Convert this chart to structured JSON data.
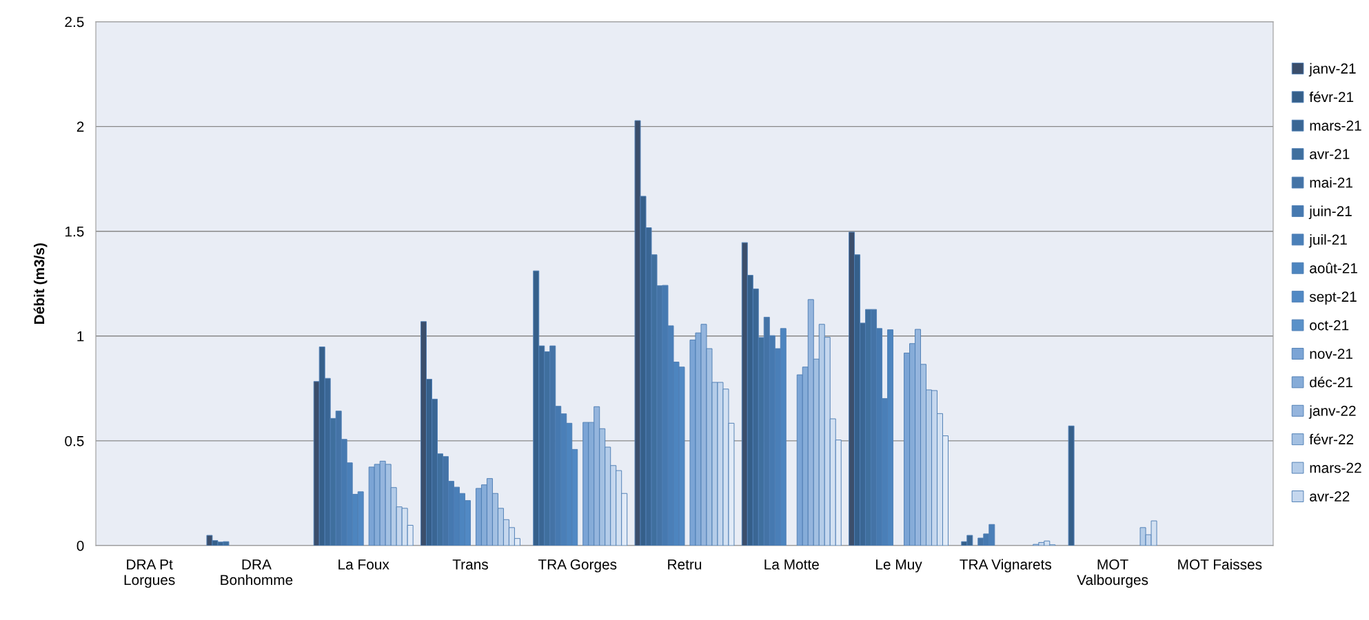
{
  "chart_data": {
    "type": "bar",
    "ylabel": "Débit (m3/s)",
    "categories": [
      "DRA Pt\nLorgues",
      "DRA\nBonhomme",
      "La Foux",
      "Trans",
      "TRA Gorges",
      "Retru",
      "La Motte",
      "Le Muy",
      "TRA Vignarets",
      "MOT\nValbourges",
      "MOT Faisses"
    ],
    "ylim": [
      0,
      2.5
    ],
    "yticks": [
      0,
      0.5,
      1,
      1.5,
      2,
      2.5
    ],
    "grid": "y",
    "legend": "right",
    "series": [
      {
        "name": "janv-21",
        "color": "#3b4e6b",
        "values": [
          null,
          0.049,
          0.783,
          1.069,
          null,
          2.028,
          1.446,
          1.496,
          null,
          null,
          null
        ]
      },
      {
        "name": "févr-21",
        "color": "#355f8a",
        "values": [
          null,
          0.024,
          0.948,
          0.794,
          1.311,
          1.667,
          1.29,
          1.388,
          0.019,
          0.571,
          null
        ]
      },
      {
        "name": "mars-21",
        "color": "#3a6694",
        "values": [
          null,
          0.017,
          0.798,
          0.699,
          0.953,
          1.517,
          1.225,
          1.062,
          0.049,
          null,
          null
        ]
      },
      {
        "name": "avr-21",
        "color": "#3f6f9e",
        "values": [
          null,
          0.019,
          0.607,
          0.438,
          0.925,
          1.388,
          0.993,
          1.127,
          null,
          null,
          null
        ]
      },
      {
        "name": "mai-21",
        "color": "#4473a6",
        "values": [
          null,
          null,
          0.642,
          0.425,
          0.953,
          1.24,
          1.09,
          1.127,
          0.036,
          null,
          null
        ]
      },
      {
        "name": "juin-21",
        "color": "#4679b0",
        "values": [
          null,
          null,
          0.507,
          0.307,
          0.665,
          1.242,
          1.002,
          1.036,
          0.056,
          null,
          null
        ]
      },
      {
        "name": "juil-21",
        "color": "#4a7fb8",
        "values": [
          null,
          null,
          0.395,
          0.279,
          0.629,
          1.049,
          0.94,
          0.702,
          0.101,
          null,
          null
        ]
      },
      {
        "name": "août-21",
        "color": "#4d85bf",
        "values": [
          null,
          null,
          0.245,
          0.249,
          0.584,
          0.876,
          1.036,
          1.03,
          null,
          null,
          null
        ]
      },
      {
        "name": "sept-21",
        "color": "#5189c4",
        "values": [
          null,
          null,
          0.257,
          0.215,
          0.459,
          0.852,
          null,
          null,
          null,
          null,
          null
        ]
      },
      {
        "name": "oct-21",
        "color": "#5a91c9",
        "values": [
          null,
          null,
          null,
          null,
          null,
          null,
          null,
          null,
          null,
          null,
          null
        ]
      },
      {
        "name": "nov-21",
        "color": "#7ba4d5",
        "values": [
          null,
          null,
          0.375,
          0.273,
          0.588,
          0.981,
          0.815,
          0.919,
          null,
          null,
          null
        ]
      },
      {
        "name": "déc-21",
        "color": "#86acd8",
        "values": [
          null,
          null,
          0.388,
          0.29,
          0.588,
          1.015,
          0.852,
          0.964,
          null,
          null,
          null
        ]
      },
      {
        "name": "janv-22",
        "color": "#95b5dd",
        "values": [
          null,
          null,
          0.403,
          0.32,
          0.663,
          1.056,
          1.174,
          1.032,
          null,
          null,
          null
        ]
      },
      {
        "name": "févr-22",
        "color": "#a3c0e2",
        "values": [
          null,
          null,
          0.388,
          0.249,
          0.558,
          0.94,
          0.89,
          0.865,
          null,
          null,
          null
        ]
      },
      {
        "name": "mars-22",
        "color": "#b4cce8",
        "values": [
          null,
          null,
          0.277,
          0.178,
          0.47,
          0.779,
          1.056,
          0.743,
          0.006,
          0.086,
          null
        ]
      },
      {
        "name": "avr-22",
        "color": "#c5d7ee",
        "values": [
          null,
          null,
          0.185,
          0.124,
          0.382,
          0.779,
          0.994,
          0.74,
          0.015,
          0.052,
          null
        ]
      },
      {
        "color": "#d3e1f2",
        "values": [
          null,
          null,
          0.178,
          0.086,
          0.358,
          0.747,
          0.605,
          0.63,
          0.022,
          0.118,
          null
        ]
      },
      {
        "color": "#e2ebf7",
        "values": [
          null,
          null,
          0.097,
          0.034,
          0.249,
          0.584,
          0.504,
          0.524,
          0.004,
          null,
          null
        ]
      }
    ]
  }
}
